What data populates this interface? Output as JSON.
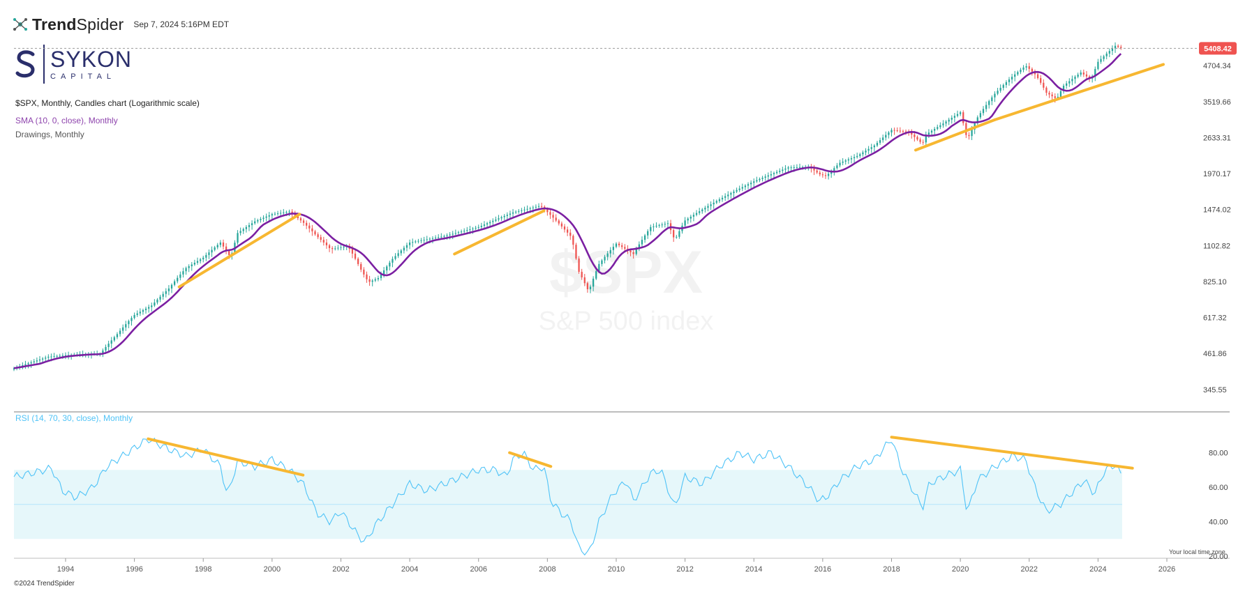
{
  "header": {
    "brand_trend": "Trend",
    "brand_spider": "Spider",
    "datetime": "Sep 7, 2024 5:16PM EDT"
  },
  "logo": {
    "name": "SYKON",
    "sub": "CAPITAL"
  },
  "legend": {
    "main": "$SPX, Monthly, Candles chart (Logarithmic scale)",
    "sma": "SMA (10, 0, close), Monthly",
    "drawings": "Drawings, Monthly",
    "rsi": "RSI (14, 70, 30, close), Monthly"
  },
  "watermark": {
    "symbol": "$SPX",
    "name": "S&P 500 index"
  },
  "footer": {
    "copyright": "©2024 TrendSpider",
    "timezone": "Your local time zone"
  },
  "colors": {
    "candle_up": "#26a69a",
    "candle_down": "#ef5350",
    "sma": "#7b1fa2",
    "trendline": "#f7b731",
    "rsi": "#4fc3f7",
    "rsi_band": "#e6f7fa",
    "price_badge": "#ef5350"
  },
  "chart_data": {
    "type": "candlestick",
    "scale": "log",
    "x_ticks": [
      "1994",
      "1996",
      "1998",
      "2000",
      "2002",
      "2004",
      "2006",
      "2008",
      "2010",
      "2012",
      "2014",
      "2016",
      "2018",
      "2020",
      "2022",
      "2024",
      "2026"
    ],
    "x_range": [
      1992.5,
      2026
    ],
    "price_ticks": [
      "4704.34",
      "3519.66",
      "2633.31",
      "1970.17",
      "1474.02",
      "1102.82",
      "825.10",
      "617.32",
      "461.86",
      "345.55"
    ],
    "price_range": [
      300,
      5700
    ],
    "last_price": "5408.42",
    "price_anchors": [
      [
        1992.5,
        410
      ],
      [
        1993.5,
        450
      ],
      [
        1994.5,
        460
      ],
      [
        1995.0,
        460
      ],
      [
        1995.5,
        540
      ],
      [
        1996.0,
        630
      ],
      [
        1996.5,
        680
      ],
      [
        1997.0,
        780
      ],
      [
        1997.5,
        920
      ],
      [
        1998.0,
        1000
      ],
      [
        1998.5,
        1130
      ],
      [
        1998.8,
        1000
      ],
      [
        1999.0,
        1220
      ],
      [
        1999.5,
        1340
      ],
      [
        2000.0,
        1420
      ],
      [
        2000.5,
        1450
      ],
      [
        2000.9,
        1330
      ],
      [
        2001.3,
        1190
      ],
      [
        2001.7,
        1070
      ],
      [
        2002.2,
        1100
      ],
      [
        2002.6,
        900
      ],
      [
        2002.8,
        820
      ],
      [
        2003.1,
        850
      ],
      [
        2003.5,
        990
      ],
      [
        2004.0,
        1130
      ],
      [
        2005.0,
        1190
      ],
      [
        2006.0,
        1280
      ],
      [
        2007.0,
        1440
      ],
      [
        2007.8,
        1520
      ],
      [
        2008.3,
        1330
      ],
      [
        2008.7,
        1180
      ],
      [
        2008.9,
        900
      ],
      [
        2009.2,
        760
      ],
      [
        2009.5,
        950
      ],
      [
        2010.0,
        1120
      ],
      [
        2010.5,
        1030
      ],
      [
        2011.0,
        1280
      ],
      [
        2011.5,
        1320
      ],
      [
        2011.7,
        1150
      ],
      [
        2012.0,
        1350
      ],
      [
        2013.0,
        1600
      ],
      [
        2014.0,
        1850
      ],
      [
        2015.0,
        2070
      ],
      [
        2015.6,
        2080
      ],
      [
        2015.9,
        1960
      ],
      [
        2016.1,
        1930
      ],
      [
        2016.5,
        2150
      ],
      [
        2017.0,
        2270
      ],
      [
        2017.5,
        2470
      ],
      [
        2018.0,
        2800
      ],
      [
        2018.5,
        2750
      ],
      [
        2018.9,
        2500
      ],
      [
        2019.0,
        2700
      ],
      [
        2019.5,
        2950
      ],
      [
        2020.0,
        3230
      ],
      [
        2020.2,
        2580
      ],
      [
        2020.5,
        3100
      ],
      [
        2021.0,
        3750
      ],
      [
        2021.5,
        4300
      ],
      [
        2021.9,
        4700
      ],
      [
        2022.2,
        4350
      ],
      [
        2022.5,
        3780
      ],
      [
        2022.8,
        3590
      ],
      [
        2023.0,
        4000
      ],
      [
        2023.5,
        4450
      ],
      [
        2023.8,
        4200
      ],
      [
        2024.0,
        4850
      ],
      [
        2024.3,
        5250
      ],
      [
        2024.5,
        5520
      ],
      [
        2024.7,
        5408
      ]
    ],
    "rsi_ticks": [
      "80.00",
      "60.00",
      "40.00",
      "20.00"
    ],
    "rsi_range": [
      20,
      100
    ],
    "rsi_levels": [
      70,
      50,
      30
    ],
    "rsi_anchors": [
      [
        1992.5,
        66
      ],
      [
        1993.0,
        68
      ],
      [
        1993.6,
        71
      ],
      [
        1993.9,
        58
      ],
      [
        1994.3,
        54
      ],
      [
        1994.8,
        60
      ],
      [
        1995.2,
        72
      ],
      [
        1995.8,
        80
      ],
      [
        1996.4,
        88
      ],
      [
        1997.0,
        82
      ],
      [
        1997.5,
        78
      ],
      [
        1998.0,
        82
      ],
      [
        1998.5,
        72
      ],
      [
        1998.7,
        55
      ],
      [
        1999.0,
        75
      ],
      [
        1999.5,
        72
      ],
      [
        2000.0,
        76
      ],
      [
        2000.5,
        70
      ],
      [
        2000.9,
        62
      ],
      [
        2001.3,
        45
      ],
      [
        2001.7,
        40
      ],
      [
        2002.0,
        46
      ],
      [
        2002.5,
        32
      ],
      [
        2002.7,
        28
      ],
      [
        2003.0,
        38
      ],
      [
        2003.5,
        50
      ],
      [
        2004.0,
        62
      ],
      [
        2004.5,
        58
      ],
      [
        2005.0,
        62
      ],
      [
        2005.5,
        66
      ],
      [
        2006.0,
        70
      ],
      [
        2006.5,
        70
      ],
      [
        2006.8,
        66
      ],
      [
        2007.0,
        76
      ],
      [
        2007.3,
        80
      ],
      [
        2007.6,
        70
      ],
      [
        2007.9,
        72
      ],
      [
        2008.1,
        52
      ],
      [
        2008.4,
        45
      ],
      [
        2008.7,
        40
      ],
      [
        2008.9,
        25
      ],
      [
        2009.2,
        21
      ],
      [
        2009.5,
        40
      ],
      [
        2009.9,
        56
      ],
      [
        2010.3,
        64
      ],
      [
        2010.5,
        52
      ],
      [
        2011.0,
        68
      ],
      [
        2011.3,
        70
      ],
      [
        2011.7,
        48
      ],
      [
        2012.0,
        66
      ],
      [
        2012.5,
        62
      ],
      [
        2013.0,
        72
      ],
      [
        2013.6,
        80
      ],
      [
        2014.0,
        76
      ],
      [
        2014.5,
        80
      ],
      [
        2015.0,
        72
      ],
      [
        2015.6,
        60
      ],
      [
        2015.9,
        52
      ],
      [
        2016.1,
        54
      ],
      [
        2016.5,
        64
      ],
      [
        2017.0,
        72
      ],
      [
        2017.5,
        76
      ],
      [
        2018.0,
        88
      ],
      [
        2018.3,
        70
      ],
      [
        2018.9,
        48
      ],
      [
        2019.1,
        62
      ],
      [
        2019.5,
        66
      ],
      [
        2020.0,
        70
      ],
      [
        2020.2,
        45
      ],
      [
        2020.5,
        64
      ],
      [
        2021.0,
        72
      ],
      [
        2021.5,
        78
      ],
      [
        2021.9,
        76
      ],
      [
        2022.2,
        58
      ],
      [
        2022.5,
        46
      ],
      [
        2022.9,
        50
      ],
      [
        2023.2,
        56
      ],
      [
        2023.6,
        64
      ],
      [
        2023.9,
        56
      ],
      [
        2024.2,
        70
      ],
      [
        2024.5,
        73
      ],
      [
        2024.7,
        66
      ]
    ],
    "price_trendlines": [
      [
        [
          1997.3,
          790
        ],
        [
          2000.8,
          1420
        ]
      ],
      [
        [
          2005.3,
          1030
        ],
        [
          2007.9,
          1460
        ]
      ],
      [
        [
          2018.7,
          2380
        ],
        [
          2021.0,
          3040
        ]
      ],
      [
        [
          2021.0,
          3040
        ],
        [
          2025.9,
          4750
        ]
      ]
    ],
    "rsi_trendlines": [
      [
        [
          1996.4,
          88
        ],
        [
          2000.9,
          67
        ]
      ],
      [
        [
          2006.9,
          80
        ],
        [
          2008.1,
          72
        ]
      ],
      [
        [
          2018.0,
          89
        ],
        [
          2025.0,
          71
        ]
      ]
    ]
  }
}
